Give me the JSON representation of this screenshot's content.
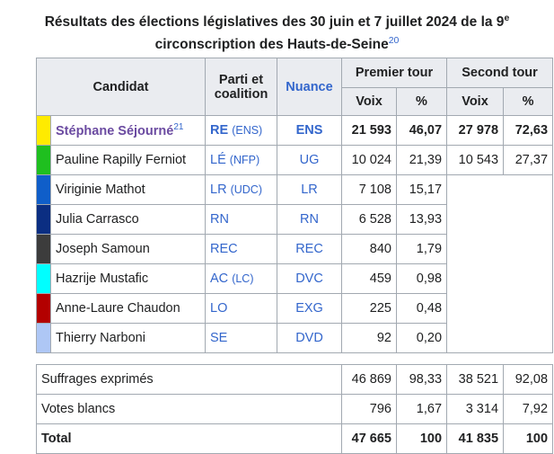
{
  "caption": {
    "text": "Résultats des élections législatives des 30 juin et 7 juillet 2024 de la 9",
    "superscript": "e",
    "text2": "circonscription des Hauts-de-Seine",
    "ref": "20"
  },
  "headers": {
    "candidat": "Candidat",
    "parti_line1": "Parti et",
    "parti_line2": "coalition",
    "nuance": "Nuance",
    "premier_tour": "Premier tour",
    "second_tour": "Second tour",
    "voix1": "Voix",
    "pct1": "%",
    "voix2": "Voix",
    "pct2": "%"
  },
  "candidates": [
    {
      "color": "#ffeb00",
      "name": "Stéphane Séjourné",
      "ref": "21",
      "party": "RE",
      "coalition": "(ENS)",
      "nuance": "ENS",
      "voix1": "21 593",
      "pct1": "46,07",
      "voix2": "27 978",
      "pct2": "72,63"
    },
    {
      "color": "#1fbf1f",
      "name": "Pauline Rapilly Ferniot",
      "ref": "",
      "party": "LÉ",
      "coalition": "(NFP)",
      "nuance": "UG",
      "voix1": "10 024",
      "pct1": "21,39",
      "voix2": "10 543",
      "pct2": "27,37"
    },
    {
      "color": "#0f5ec9",
      "name": "Viriginie Mathot",
      "ref": "",
      "party": "LR",
      "coalition": "(UDC)",
      "nuance": "LR",
      "voix1": "7 108",
      "pct1": "15,17"
    },
    {
      "color": "#0b2e82",
      "name": "Julia Carrasco",
      "ref": "",
      "party": "RN",
      "coalition": "",
      "nuance": "RN",
      "voix1": "6 528",
      "pct1": "13,93"
    },
    {
      "color": "#3c3c3c",
      "name": "Joseph Samoun",
      "ref": "",
      "party": "REC",
      "coalition": "",
      "nuance": "REC",
      "voix1": "840",
      "pct1": "1,79"
    },
    {
      "color": "#00ffff",
      "name": "Hazrije Mustafic",
      "ref": "",
      "party": "AC",
      "coalition": "(LC)",
      "nuance": "DVC",
      "voix1": "459",
      "pct1": "0,98"
    },
    {
      "color": "#b30000",
      "name": "Anne-Laure Chaudon",
      "ref": "",
      "party": "LO",
      "coalition": "",
      "nuance": "EXG",
      "voix1": "225",
      "pct1": "0,48"
    },
    {
      "color": "#aec7f5",
      "name": "Thierry Narboni",
      "ref": "",
      "party": "SE",
      "coalition": "",
      "nuance": "DVD",
      "voix1": "92",
      "pct1": "0,20"
    }
  ],
  "totals": [
    {
      "label": "Suffrages exprimés",
      "voix1": "46 869",
      "pct1": "98,33",
      "voix2": "38 521",
      "pct2": "92,08"
    },
    {
      "label": "Votes blancs",
      "voix1": "796",
      "pct1": "1,67",
      "voix2": "3 314",
      "pct2": "7,92"
    }
  ],
  "total": {
    "label": "Total",
    "voix1": "47 665",
    "pct1": "100",
    "voix2": "41 835",
    "pct2": "100"
  }
}
